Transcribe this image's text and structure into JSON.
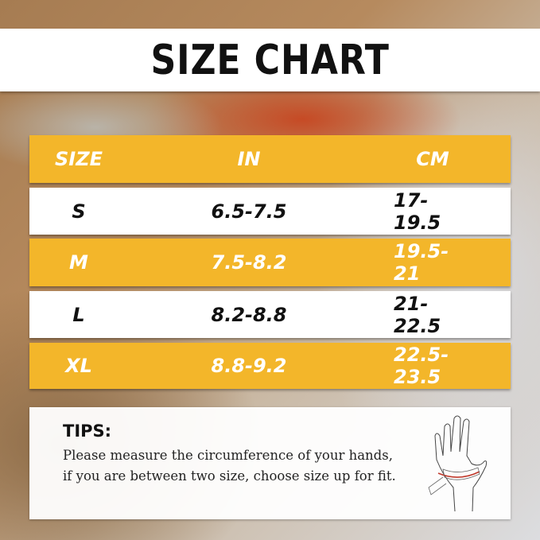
{
  "title": "SIZE CHART",
  "table": {
    "headers": [
      "SIZE",
      "IN",
      "CM"
    ],
    "rows": [
      {
        "size": "S",
        "in": "6.5-7.5",
        "cm": "17-19.5"
      },
      {
        "size": "M",
        "in": "7.5-8.2",
        "cm": "19.5-21"
      },
      {
        "size": "L",
        "in": "8.2-8.8",
        "cm": "21-22.5"
      },
      {
        "size": "XL",
        "in": "8.8-9.2",
        "cm": "22.5-23.5"
      }
    ]
  },
  "tips": {
    "heading": "TIPS:",
    "text": "Please measure the circumference of your hands, if you are between two size, choose size up for fit."
  },
  "colors": {
    "accent": "#f3b62a",
    "measure_line": "#c0392b"
  },
  "icons": [
    "hand-measure-icon"
  ]
}
